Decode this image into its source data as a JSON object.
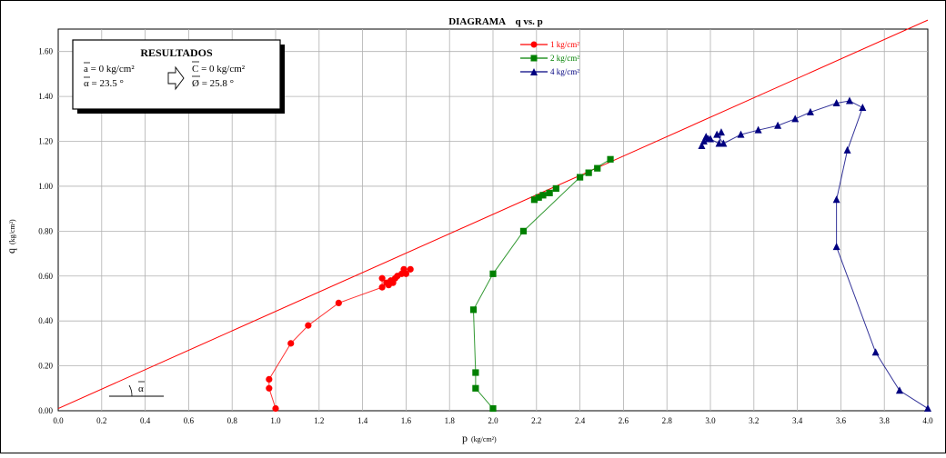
{
  "chart_data": {
    "type": "scatter",
    "title": "DIAGRAMA    q vs. p",
    "xlabel": "p",
    "xlabel_unit": "(kg/cm²)",
    "ylabel": "q",
    "ylabel_unit": "(kg/cm²)",
    "xlim": [
      0.0,
      4.0
    ],
    "ylim": [
      0.0,
      1.7
    ],
    "x_ticks": [
      "0.0",
      "0.2",
      "0.4",
      "0.6",
      "0.8",
      "1.0",
      "1.2",
      "1.4",
      "1.6",
      "1.8",
      "2.0",
      "2.2",
      "2.4",
      "2.6",
      "2.8",
      "3.0",
      "3.2",
      "3.4",
      "3.6",
      "3.8",
      "4.0"
    ],
    "y_ticks": [
      "0.00",
      "0.20",
      "0.40",
      "0.60",
      "0.80",
      "1.00",
      "1.20",
      "1.40",
      "1.60"
    ],
    "grid": true,
    "legend_position": "top-center",
    "series": [
      {
        "name": "1 kg/cm²",
        "color": "#ff0000",
        "marker": "circle",
        "x": [
          1.0,
          0.97,
          0.97,
          1.07,
          1.15,
          1.29,
          1.49,
          1.49,
          1.51,
          1.52,
          1.53,
          1.54,
          1.55,
          1.56,
          1.58,
          1.59,
          1.6,
          1.62
        ],
        "y": [
          0.01,
          0.1,
          0.14,
          0.3,
          0.38,
          0.48,
          0.55,
          0.59,
          0.57,
          0.56,
          0.58,
          0.57,
          0.59,
          0.6,
          0.61,
          0.63,
          0.61,
          0.63
        ]
      },
      {
        "name": "2 kg/cm²",
        "color": "#008000",
        "marker": "square",
        "x": [
          2.0,
          1.92,
          1.92,
          1.91,
          2.0,
          2.14,
          2.19,
          2.21,
          2.23,
          2.26,
          2.29,
          2.4,
          2.44,
          2.48,
          2.54
        ],
        "y": [
          0.01,
          0.1,
          0.17,
          0.45,
          0.61,
          0.8,
          0.94,
          0.95,
          0.96,
          0.97,
          0.99,
          1.04,
          1.06,
          1.08,
          1.12
        ],
        "trend_x": [
          2.0,
          1.92,
          1.92,
          1.91,
          2.0,
          2.14,
          2.4,
          2.54
        ],
        "trend_y": [
          0.01,
          0.1,
          0.17,
          0.45,
          0.61,
          0.8,
          1.04,
          1.12
        ]
      },
      {
        "name": "4 kg/cm²",
        "color": "#000080",
        "marker": "triangle",
        "x": [
          4.0,
          3.87,
          3.76,
          3.58,
          3.58,
          3.63,
          3.7,
          3.64,
          3.58,
          3.46,
          3.39,
          3.31,
          3.22,
          3.14,
          3.06,
          3.03,
          3.05,
          3.04,
          3.0,
          2.99,
          2.98,
          2.97,
          2.96
        ],
        "y": [
          0.01,
          0.09,
          0.26,
          0.73,
          0.94,
          1.16,
          1.35,
          1.38,
          1.37,
          1.33,
          1.3,
          1.27,
          1.25,
          1.23,
          1.19,
          1.23,
          1.24,
          1.19,
          1.21,
          1.21,
          1.22,
          1.2,
          1.18
        ]
      }
    ],
    "failure_envelope": {
      "color": "#ff0000",
      "intercept": 0.0,
      "angle_deg": 23.5,
      "x": [
        0.0,
        4.0
      ],
      "y": [
        0.01,
        1.74
      ]
    },
    "angle_marker_label": "α",
    "results_box": {
      "title": "RESULTADOS",
      "line1": "a = 0 kg/cm²",
      "line2": "α = 23.5 °",
      "line3": "C = 0 kg/cm²",
      "line4": "Ø = 25.8 °"
    }
  }
}
